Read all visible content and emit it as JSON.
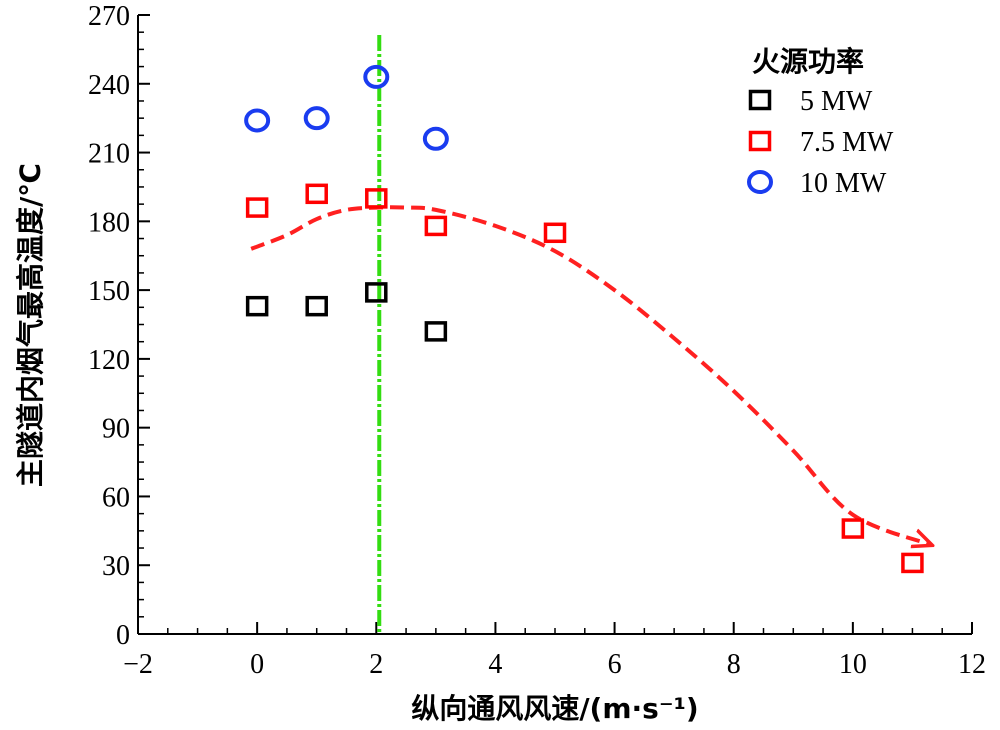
{
  "chart_data": {
    "type": "scatter",
    "xlabel": "纵向通风风速/(m·s⁻¹)",
    "ylabel": "主隧道内烟气最高温度/℃",
    "xlim": [
      -2,
      12
    ],
    "ylim": [
      0,
      270
    ],
    "xticks": [
      -2,
      0,
      2,
      4,
      6,
      8,
      10,
      12
    ],
    "yticks": [
      0,
      30,
      60,
      90,
      120,
      150,
      180,
      210,
      240,
      270
    ],
    "xtick_labels": [
      "−2",
      "0",
      "2",
      "4",
      "6",
      "8",
      "10",
      "12"
    ],
    "ytick_labels": [
      "0",
      "30",
      "60",
      "90",
      "120",
      "150",
      "180",
      "210",
      "240",
      "270"
    ],
    "grid": false,
    "legend": {
      "title": "火源功率",
      "position": "top-right"
    },
    "series": [
      {
        "name": "5 MW",
        "marker": "square",
        "color": "#000000",
        "x": [
          0,
          1,
          2,
          3
        ],
        "y": [
          143,
          143,
          149,
          132
        ]
      },
      {
        "name": "7.5 MW",
        "marker": "square",
        "color": "#ff0000",
        "x": [
          0,
          1,
          2,
          3,
          5,
          10,
          11
        ],
        "y": [
          186,
          192,
          190,
          178,
          175,
          46,
          31
        ]
      },
      {
        "name": "10 MW",
        "marker": "circle",
        "color": "#1a3cf0",
        "x": [
          0,
          1,
          2,
          3
        ],
        "y": [
          224,
          225,
          243,
          216
        ]
      }
    ],
    "trend_line": {
      "style": "dashed-arrow",
      "color": "#ff2020",
      "x": [
        -0.1,
        0.5,
        1.0,
        1.5,
        2.0,
        2.5,
        3.0,
        4.0,
        5.0,
        6.0,
        7.0,
        8.0,
        9.0,
        10.0,
        11.3
      ],
      "y": [
        168,
        174,
        181,
        185,
        186,
        186,
        185,
        178,
        167,
        150,
        129,
        106,
        80,
        52,
        39
      ]
    },
    "reference_line": {
      "x": 2.05,
      "color": "#33dd11",
      "style": "dash-dot"
    }
  }
}
